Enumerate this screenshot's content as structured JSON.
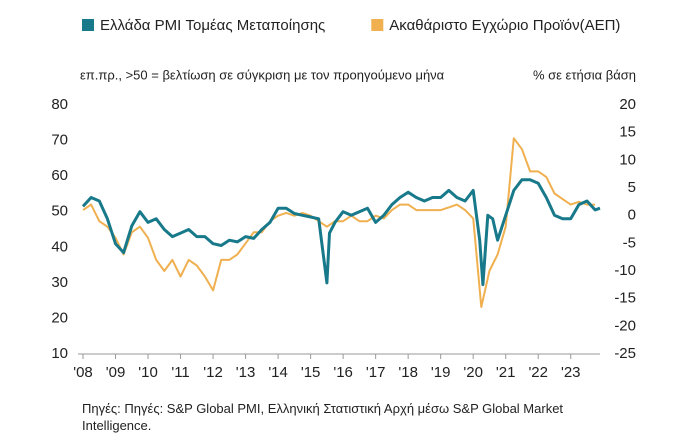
{
  "chart_data": {
    "type": "line",
    "subtitle_left": "επ.πρ., >50 = βελτίωση σε σύγκριση με τον προηγούμενο μήνα",
    "subtitle_right": "% σε ετήσια βάση",
    "source": "Πηγές: Πηγές: S&P Global PMI, Ελληνική Στατιστική Αρχή μέσω S&P Global Market Intelligence.",
    "xlim": [
      2008,
      2023.9
    ],
    "xticks": [
      {
        "value": 2008,
        "label": "'08"
      },
      {
        "value": 2009,
        "label": "'09"
      },
      {
        "value": 2010,
        "label": "'10"
      },
      {
        "value": 2011,
        "label": "'11"
      },
      {
        "value": 2012,
        "label": "'12"
      },
      {
        "value": 2013,
        "label": "'13"
      },
      {
        "value": 2014,
        "label": "'14"
      },
      {
        "value": 2015,
        "label": "'15"
      },
      {
        "value": 2016,
        "label": "'16"
      },
      {
        "value": 2017,
        "label": "'17"
      },
      {
        "value": 2018,
        "label": "'18"
      },
      {
        "value": 2019,
        "label": "'19"
      },
      {
        "value": 2020,
        "label": "'20"
      },
      {
        "value": 2021,
        "label": "'21"
      },
      {
        "value": 2022,
        "label": "'22"
      },
      {
        "value": 2023,
        "label": "'23"
      }
    ],
    "ylim": [
      10,
      80
    ],
    "yticks": [
      10,
      20,
      30,
      40,
      50,
      60,
      70,
      80
    ],
    "y2lim": [
      -25,
      20
    ],
    "y2ticks": [
      -25,
      -20,
      -15,
      -10,
      -5,
      0,
      5,
      10,
      15,
      20
    ],
    "series": [
      {
        "name": "Ελλάδα PMI Τομέας Μεταποίησης",
        "color": "#17798a",
        "x": [
          2008.0,
          2008.25,
          2008.5,
          2008.75,
          2009.0,
          2009.25,
          2009.5,
          2009.75,
          2010.0,
          2010.25,
          2010.5,
          2010.75,
          2011.0,
          2011.25,
          2011.5,
          2011.75,
          2012.0,
          2012.25,
          2012.5,
          2012.75,
          2013.0,
          2013.25,
          2013.5,
          2013.75,
          2014.0,
          2014.25,
          2014.5,
          2014.75,
          2015.0,
          2015.25,
          2015.5,
          2015.58,
          2015.75,
          2016.0,
          2016.25,
          2016.5,
          2016.75,
          2017.0,
          2017.25,
          2017.5,
          2017.75,
          2018.0,
          2018.25,
          2018.5,
          2018.75,
          2019.0,
          2019.25,
          2019.5,
          2019.75,
          2020.0,
          2020.2,
          2020.3,
          2020.45,
          2020.6,
          2020.75,
          2021.0,
          2021.25,
          2021.5,
          2021.75,
          2022.0,
          2022.25,
          2022.5,
          2022.75,
          2023.0,
          2023.25,
          2023.5,
          2023.75,
          2023.9
        ],
        "values": [
          51.5,
          54,
          53,
          48,
          41,
          38.5,
          46,
          50,
          47,
          48,
          45,
          43,
          44,
          45,
          43,
          43,
          41,
          40.5,
          42,
          41.5,
          43,
          42.5,
          45,
          47,
          51,
          51,
          49.5,
          49,
          48.5,
          48,
          30,
          44,
          47,
          50,
          49,
          50,
          51,
          47,
          49,
          52,
          54,
          55.5,
          54,
          53,
          54,
          54,
          56,
          54,
          53,
          56,
          42,
          29.5,
          49,
          48,
          42,
          49,
          56,
          59,
          59,
          58,
          54,
          49,
          48,
          48,
          52,
          53,
          50.5,
          51
        ]
      },
      {
        "name": "Ακαθάριστο Εγχώριο Προϊόν(ΑΕΠ)",
        "color": "#f0b050",
        "axis": "y2",
        "x": [
          2008.0,
          2008.25,
          2008.5,
          2008.75,
          2009.0,
          2009.25,
          2009.5,
          2009.75,
          2010.0,
          2010.25,
          2010.5,
          2010.75,
          2011.0,
          2011.25,
          2011.5,
          2011.75,
          2012.0,
          2012.25,
          2012.5,
          2012.75,
          2013.0,
          2013.25,
          2013.5,
          2013.75,
          2014.0,
          2014.25,
          2014.5,
          2014.75,
          2015.0,
          2015.25,
          2015.5,
          2015.75,
          2016.0,
          2016.25,
          2016.5,
          2016.75,
          2017.0,
          2017.25,
          2017.5,
          2017.75,
          2018.0,
          2018.25,
          2018.5,
          2018.75,
          2019.0,
          2019.25,
          2019.5,
          2019.75,
          2020.0,
          2020.25,
          2020.5,
          2020.75,
          2021.0,
          2021.25,
          2021.5,
          2021.75,
          2022.0,
          2022.25,
          2022.5,
          2022.75,
          2023.0,
          2023.25,
          2023.5,
          2023.75
        ],
        "values": [
          1,
          2,
          -1,
          -2,
          -4,
          -7,
          -3,
          -2,
          -4,
          -8,
          -10,
          -8,
          -11,
          -8,
          -9,
          -11,
          -13.5,
          -8,
          -8,
          -7,
          -5,
          -3,
          -3,
          -1,
          0,
          0.5,
          0,
          0.5,
          0,
          -1,
          -2,
          -1,
          -1,
          0,
          -1,
          -1,
          0,
          -0.5,
          1,
          2,
          2,
          1,
          1,
          1,
          1,
          1.5,
          2,
          1,
          -0.5,
          -16.5,
          -10,
          -7,
          -2,
          14,
          12,
          8,
          8,
          7,
          4,
          3,
          2,
          2.5,
          2,
          2
        ]
      }
    ]
  }
}
